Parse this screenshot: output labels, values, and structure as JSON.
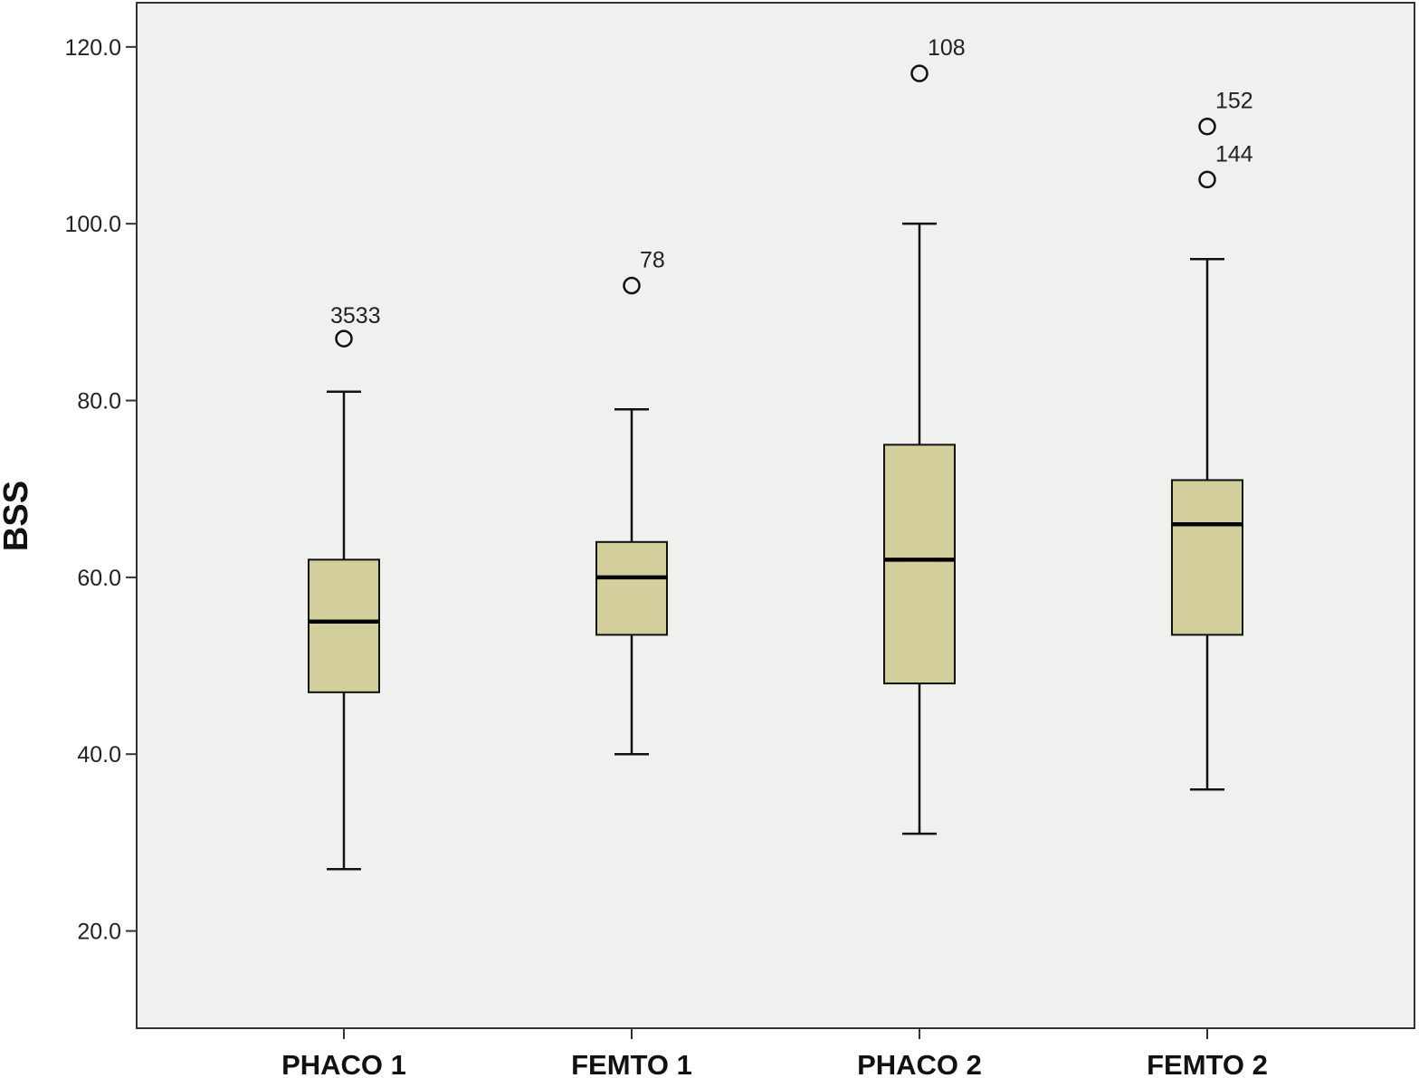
{
  "chart_data": {
    "type": "boxplot",
    "title": "",
    "xlabel": "",
    "ylabel": "BSS",
    "ylim": [
      9,
      125
    ],
    "yticks": [
      20,
      40,
      60,
      80,
      100,
      120
    ],
    "ytick_labels": [
      "20.0",
      "40.0",
      "60.0",
      "80.0",
      "100.0",
      "120.0"
    ],
    "grid": false,
    "colors": {
      "plot_bg": "#f0f0ee",
      "box_fill": "#d3cf9c",
      "line": "#111111"
    },
    "categories": [
      "PHACO 1",
      "FEMTO 1",
      "PHACO 2",
      "FEMTO 2"
    ],
    "boxes": [
      {
        "category": "PHACO 1",
        "whisker_low": 27,
        "q1": 47,
        "median": 55,
        "q3": 62,
        "whisker_high": 81,
        "outliers": [
          {
            "value": 87,
            "label": "3533"
          }
        ]
      },
      {
        "category": "FEMTO 1",
        "whisker_low": 40,
        "q1": 53.5,
        "median": 60,
        "q3": 64,
        "whisker_high": 79,
        "outliers": [
          {
            "value": 93,
            "label": "78"
          }
        ]
      },
      {
        "category": "PHACO 2",
        "whisker_low": 31,
        "q1": 48,
        "median": 62,
        "q3": 75,
        "whisker_high": 100,
        "outliers": [
          {
            "value": 117,
            "label": "108"
          }
        ]
      },
      {
        "category": "FEMTO 2",
        "whisker_low": 36,
        "q1": 53.5,
        "median": 66,
        "q3": 71,
        "whisker_high": 96,
        "outliers": [
          {
            "value": 111,
            "label": "152"
          },
          {
            "value": 105,
            "label": "144"
          }
        ]
      }
    ]
  }
}
